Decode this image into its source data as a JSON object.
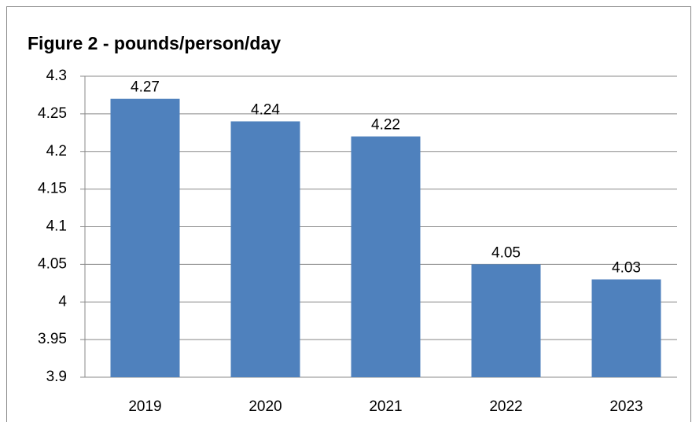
{
  "chart_data": {
    "type": "bar",
    "title": "Figure 2 - pounds/person/day",
    "categories": [
      "2019",
      "2020",
      "2021",
      "2022",
      "2023"
    ],
    "values": [
      4.27,
      4.24,
      4.22,
      4.05,
      4.03
    ],
    "color": "#4f81bd",
    "ylim": [
      3.9,
      4.3
    ],
    "yticks": [
      3.9,
      3.95,
      4,
      4.05,
      4.1,
      4.15,
      4.2,
      4.25,
      4.3
    ],
    "grid": true
  }
}
